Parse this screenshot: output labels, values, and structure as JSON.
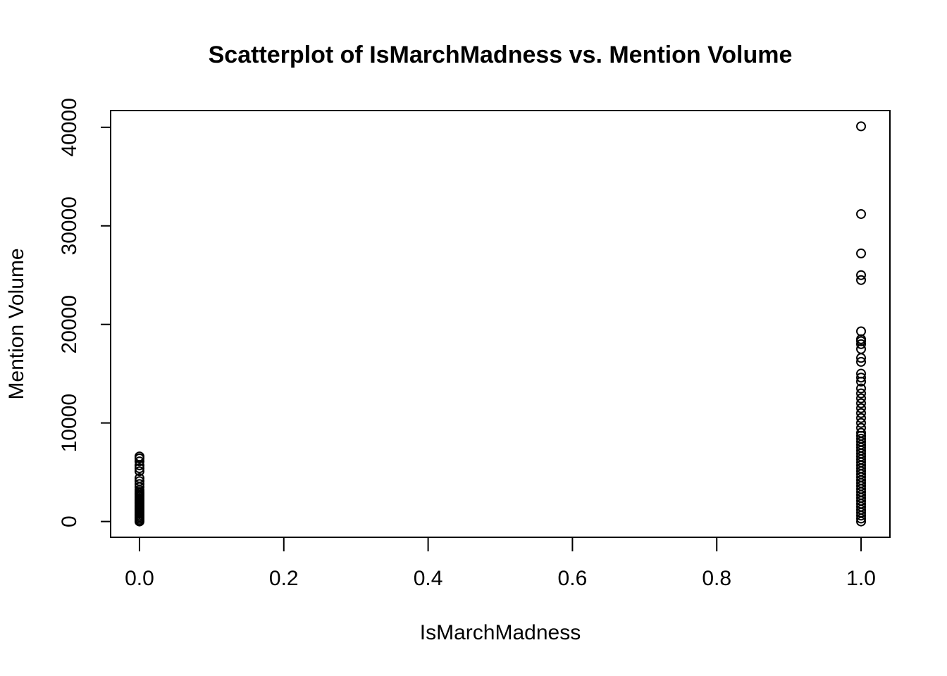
{
  "chart_data": {
    "type": "scatter",
    "title": "Scatterplot of IsMarchMadness vs. Mention Volume",
    "x_label": "IsMarchMadness",
    "y_label": "Mention Volume",
    "xlim": [
      -0.04,
      1.04
    ],
    "ylim": [
      -1600,
      41700
    ],
    "xticks": [
      {
        "value": 0,
        "label": "0.0"
      },
      {
        "value": 0.2,
        "label": "0.2"
      },
      {
        "value": 0.4,
        "label": "0.4"
      },
      {
        "value": 0.6,
        "label": "0.6"
      },
      {
        "value": 0.8,
        "label": "0.8"
      },
      {
        "value": 1,
        "label": "1.0"
      }
    ],
    "yticks": [
      0,
      10000,
      20000,
      30000,
      40000
    ],
    "color": "#000000",
    "x": [
      0,
      0,
      0,
      0,
      0,
      0,
      0,
      0,
      0,
      0,
      0,
      0,
      0,
      0,
      0,
      0,
      0,
      0,
      0,
      0,
      0,
      0,
      0,
      0,
      0,
      0,
      0,
      0,
      0,
      0,
      0,
      0,
      1,
      1,
      1,
      1,
      1,
      1,
      1,
      1,
      1,
      1,
      1,
      1,
      1,
      1,
      1,
      1,
      1,
      1,
      1,
      1,
      1,
      1,
      1,
      1,
      1,
      1,
      1,
      1,
      1,
      1,
      1,
      1,
      1,
      1,
      1,
      1,
      1,
      1,
      1,
      1,
      1,
      1,
      1,
      1,
      1,
      1,
      1,
      1,
      1,
      1,
      1,
      1,
      1,
      1,
      1
    ],
    "values": [
      0,
      150,
      300,
      450,
      600,
      750,
      900,
      1050,
      1200,
      1350,
      1500,
      1650,
      1800,
      1950,
      2100,
      2250,
      2400,
      2550,
      2700,
      2850,
      3000,
      3200,
      3500,
      3800,
      4100,
      4400,
      5100,
      5400,
      5700,
      6100,
      6400,
      6600,
      0,
      300,
      600,
      900,
      1200,
      1500,
      1800,
      2100,
      2400,
      2700,
      3000,
      3300,
      3600,
      3900,
      4200,
      4500,
      4800,
      5100,
      5400,
      5700,
      6000,
      6300,
      6600,
      6900,
      7200,
      7500,
      7800,
      8100,
      8400,
      8700,
      9000,
      9500,
      10000,
      10500,
      11000,
      11500,
      12000,
      12500,
      13000,
      13500,
      14200,
      14600,
      15000,
      16200,
      16600,
      17500,
      18000,
      18300,
      18500,
      19300,
      24500,
      25000,
      27200,
      31200,
      40100
    ]
  }
}
